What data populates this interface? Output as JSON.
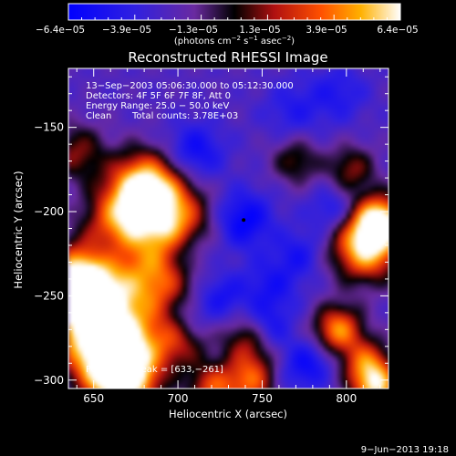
{
  "chart_data": {
    "type": "heatmap",
    "title": "Reconstructed RHESSI Image",
    "xlabel": "Heliocentric X (arcsec)",
    "ylabel": "Heliocentric Y (arcsec)",
    "xlim": [
      635,
      825
    ],
    "ylim": [
      -305,
      -115
    ],
    "x_ticks": [
      650,
      700,
      750,
      800
    ],
    "y_ticks": [
      -150,
      -200,
      -250,
      -300
    ],
    "x_tick_labels": [
      "650",
      "700",
      "750",
      "800"
    ],
    "y_tick_labels": [
      "−150",
      "−200",
      "−250",
      "−300"
    ],
    "colorbar": {
      "range": [
        -6.4e-05,
        6.4e-05
      ],
      "tick_labels": [
        "−6.4e−05",
        "−3.9e−05",
        "−1.3e−05",
        "1.3e−05",
        "3.9e−05",
        "6.4e−05"
      ],
      "units_text": "(photons cm",
      "units_exp1": "−2",
      "units_mid": " s",
      "units_exp2": "−1",
      "units_end": " asec",
      "units_exp3": "−2",
      "units_close": ")"
    },
    "annotations": {
      "time_range": "13−Sep−2003 05:06:30.000 to 05:12:30.000",
      "detectors": "Detectors: 4F 5F 6F 7F 8F, Att 0",
      "energy": "Energy Range: 25.0 − 50.0 keV",
      "method": "Clean",
      "counts": "Total counts: 3.78E+03",
      "peak": "Position of Peak = [633,−261]"
    },
    "peak_position": [
      633,
      -261
    ],
    "marker_position": [
      739,
      -205
    ],
    "footer_date": "9−Jun−2013 19:18",
    "colormap": "RHESSI rainbow (blue→purple→black→red→orange→yellow→white)",
    "image_features": [
      {
        "x": 650,
        "y": -260,
        "v": 1.0,
        "s": 20
      },
      {
        "x": 642,
        "y": -240,
        "v": 0.8,
        "s": 14
      },
      {
        "x": 662,
        "y": -285,
        "v": 0.9,
        "s": 16
      },
      {
        "x": 668,
        "y": -300,
        "v": 0.85,
        "s": 14
      },
      {
        "x": 680,
        "y": -185,
        "v": 0.95,
        "s": 14
      },
      {
        "x": 695,
        "y": -205,
        "v": 0.8,
        "s": 16
      },
      {
        "x": 665,
        "y": -205,
        "v": 0.6,
        "s": 14
      },
      {
        "x": 688,
        "y": -240,
        "v": 0.6,
        "s": 16
      },
      {
        "x": 700,
        "y": -275,
        "v": 0.55,
        "s": 12
      },
      {
        "x": 742,
        "y": -275,
        "v": 0.45,
        "s": 10
      },
      {
        "x": 745,
        "y": -300,
        "v": 0.7,
        "s": 12
      },
      {
        "x": 720,
        "y": -305,
        "v": 0.55,
        "s": 10
      },
      {
        "x": 812,
        "y": -220,
        "v": 1.0,
        "s": 14
      },
      {
        "x": 820,
        "y": -205,
        "v": 0.85,
        "s": 10
      },
      {
        "x": 795,
        "y": -270,
        "v": 0.75,
        "s": 10
      },
      {
        "x": 812,
        "y": -290,
        "v": 0.6,
        "s": 10
      },
      {
        "x": 818,
        "y": -305,
        "v": 0.8,
        "s": 10
      },
      {
        "x": 803,
        "y": -175,
        "v": 0.4,
        "s": 10
      },
      {
        "x": 770,
        "y": -170,
        "v": 0.35,
        "s": 10
      },
      {
        "x": 640,
        "y": -165,
        "v": 0.4,
        "s": 12
      },
      {
        "x": 739,
        "y": -205,
        "v": -1.0,
        "s": 12
      },
      {
        "x": 710,
        "y": -165,
        "v": -0.85,
        "s": 12
      },
      {
        "x": 705,
        "y": -225,
        "v": -0.7,
        "s": 10
      },
      {
        "x": 755,
        "y": -245,
        "v": -0.65,
        "s": 12
      },
      {
        "x": 752,
        "y": -270,
        "v": -0.8,
        "s": 10
      },
      {
        "x": 772,
        "y": -225,
        "v": -0.6,
        "s": 10
      },
      {
        "x": 725,
        "y": -250,
        "v": -0.7,
        "s": 10
      },
      {
        "x": 705,
        "y": -265,
        "v": -0.75,
        "s": 10
      },
      {
        "x": 778,
        "y": -290,
        "v": -0.8,
        "s": 10
      },
      {
        "x": 792,
        "y": -200,
        "v": -0.7,
        "s": 10
      },
      {
        "x": 768,
        "y": -140,
        "v": -0.5,
        "s": 12
      },
      {
        "x": 795,
        "y": -130,
        "v": -0.55,
        "s": 12
      },
      {
        "x": 760,
        "y": -300,
        "v": -0.5,
        "s": 10
      },
      {
        "x": 658,
        "y": -225,
        "v": -0.3,
        "s": 8
      }
    ]
  }
}
